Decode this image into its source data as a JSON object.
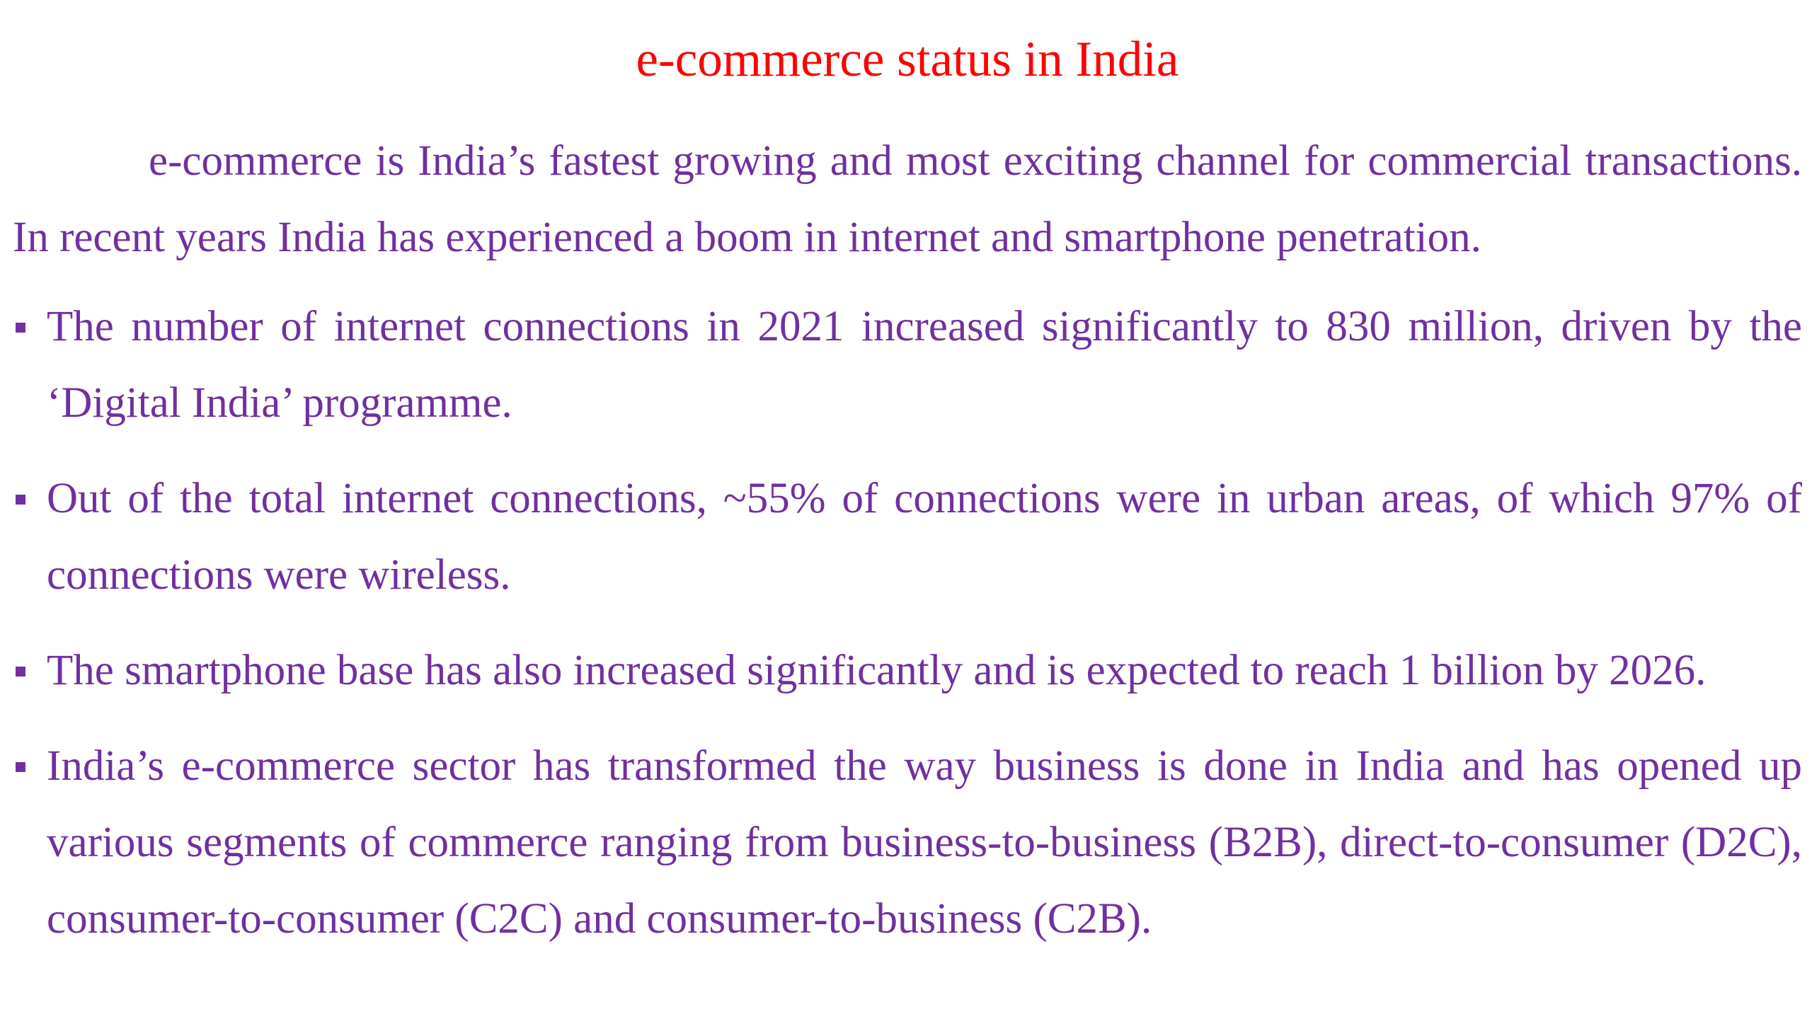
{
  "slide": {
    "title": "e-commerce status in India",
    "intro": "e-commerce is India’s fastest growing and most exciting channel for commercial transactions. In recent years India has experienced a boom in internet and smartphone penetration.",
    "bullets": [
      "The number of internet connections in 2021 increased significantly to 830 million, driven by the ‘Digital India’ programme.",
      "Out of the total internet connections, ~55% of connections were in urban areas, of which 97% of connections were wireless.",
      "The smartphone base has also increased significantly and is expected to reach 1 billion by 2026.",
      "India’s e-commerce sector has transformed the way business is done in India and has opened up various segments of commerce ranging from business-to-business (B2B), direct-to-consumer (D2C), consumer-to-consumer (C2C) and consumer-to-business (C2B)."
    ]
  },
  "colors": {
    "title": "#ff0000",
    "body_text": "#7030a0",
    "background": "#ffffff"
  },
  "icons": {
    "bullet": "square-bullet-icon"
  }
}
